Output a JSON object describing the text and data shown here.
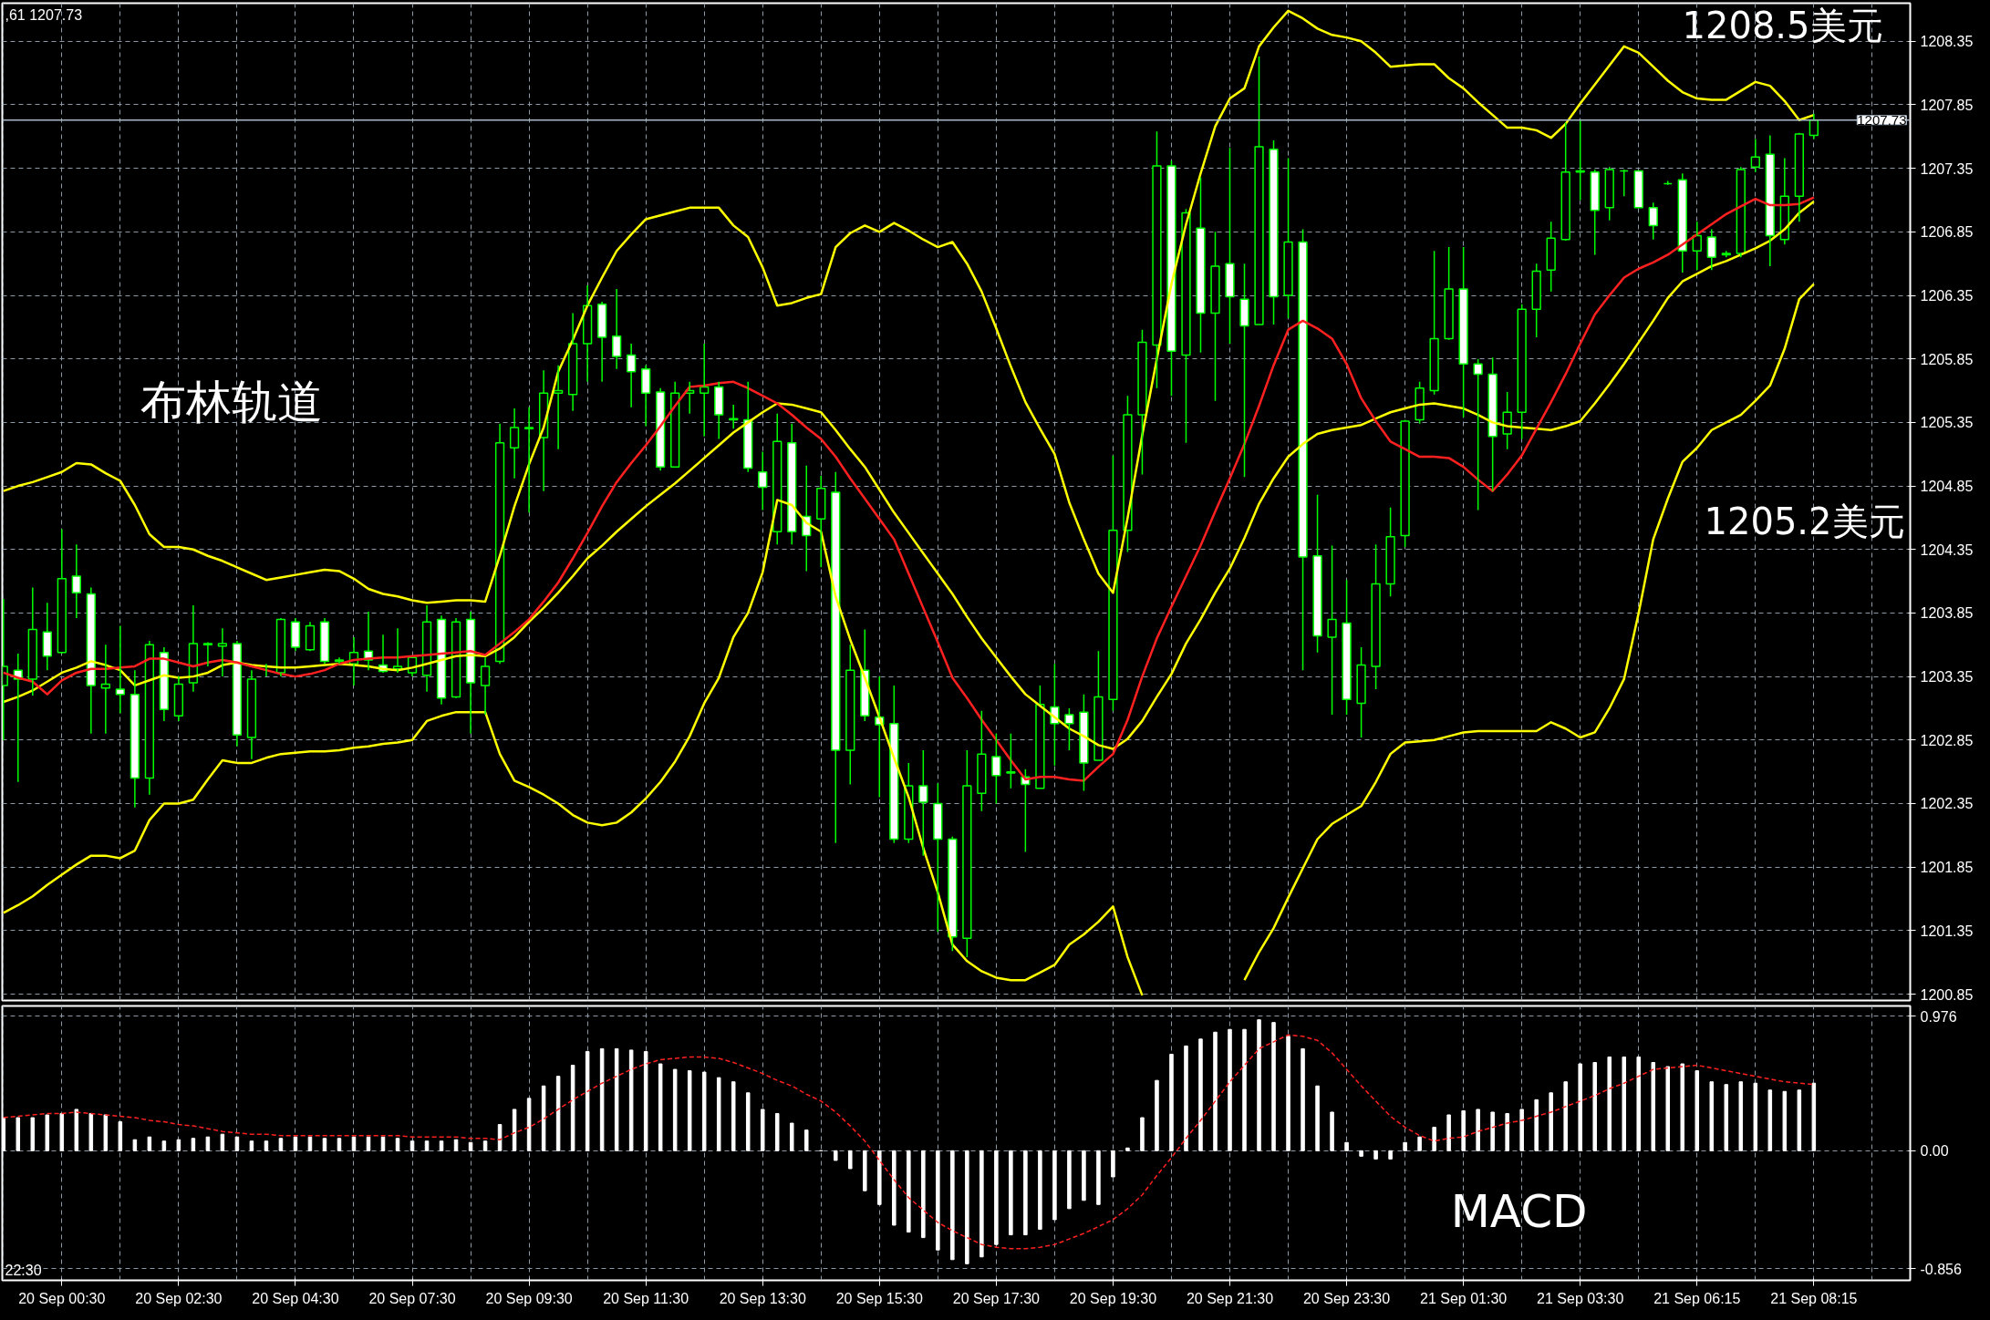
{
  "chart_data": [
    {
      "type": "candlestick",
      "ylim": [
        1200.8,
        1208.65
      ],
      "categories": [
        null,
        null,
        null,
        null,
        null,
        null,
        null,
        null,
        null,
        null,
        null,
        null,
        null,
        null,
        null,
        null,
        null,
        null,
        null,
        null,
        null,
        null,
        null,
        null,
        null,
        null,
        null,
        null,
        null,
        null,
        null,
        null,
        null,
        null,
        null,
        null,
        null,
        null,
        null,
        null,
        null,
        null,
        null,
        null,
        null,
        null,
        null,
        null,
        null,
        null,
        null,
        null,
        null,
        null,
        null,
        null,
        null,
        null,
        null,
        null,
        null,
        null,
        null,
        null,
        null,
        null,
        null,
        null,
        null,
        null,
        null,
        null,
        null,
        null,
        null,
        null,
        null,
        null,
        null,
        null,
        null,
        null,
        null,
        null,
        null,
        null,
        null,
        null,
        null,
        null,
        null,
        null,
        null,
        null,
        null,
        null,
        null,
        null,
        null,
        null,
        null,
        null,
        null,
        null,
        null,
        null,
        null,
        null,
        null,
        null,
        null,
        null,
        null,
        null,
        null,
        null,
        null,
        null,
        null,
        null,
        null,
        null,
        null,
        null,
        null
      ],
      "yticks": [
        1200.85,
        1201.35,
        1201.85,
        1202.35,
        1202.85,
        1203.35,
        1203.85,
        1204.35,
        1204.85,
        1205.35,
        1205.85,
        1206.35,
        1206.85,
        1207.35,
        1207.85,
        1208.35
      ],
      "tick_labels": "y",
      "grid": true,
      "ref_lines": [
        {
          "axis": "y",
          "value": 1207.73,
          "label": "1207.73",
          "color": "#a8b8c8"
        }
      ],
      "annotations": [
        ",61 1207.73",
        "布林轨道",
        "1208.5美元",
        "1205.2美元"
      ],
      "series": [
        {
          "type": "candlestick",
          "color": "#00ff00",
          "ohlc": [
            [
              1203.28,
              1203.96,
              1202.85,
              1203.43
            ],
            [
              1203.4,
              1203.53,
              1202.52,
              1203.33
            ],
            [
              1203.33,
              1204.05,
              1203.2,
              1203.72
            ],
            [
              1203.7,
              1203.93,
              1203.4,
              1203.51
            ],
            [
              1203.54,
              1204.51,
              1203.53,
              1204.12
            ],
            [
              1204.14,
              1204.39,
              1203.81,
              1204.01
            ],
            [
              1204.0,
              1204.05,
              1202.9,
              1203.28
            ],
            [
              1203.26,
              1203.6,
              1202.9,
              1203.29
            ],
            [
              1203.25,
              1203.75,
              1203.06,
              1203.21
            ],
            [
              1203.21,
              1203.4,
              1202.32,
              1202.55
            ],
            [
              1202.55,
              1203.63,
              1202.42,
              1203.6
            ],
            [
              1203.54,
              1203.58,
              1203.0,
              1203.09
            ],
            [
              1203.04,
              1203.35,
              1203.0,
              1203.29
            ],
            [
              1203.3,
              1203.91,
              1203.23,
              1203.61
            ],
            [
              1203.61,
              1203.62,
              1203.43,
              1203.6
            ],
            [
              1203.59,
              1203.73,
              1203.35,
              1203.61
            ],
            [
              1203.61,
              1203.63,
              1202.8,
              1202.89
            ],
            [
              1202.87,
              1203.4,
              1202.7,
              1203.33
            ],
            [
              1203.43,
              1203.45,
              1203.35,
              1203.43
            ],
            [
              1203.38,
              1203.81,
              1203.35,
              1203.8
            ],
            [
              1203.78,
              1203.81,
              1203.55,
              1203.58
            ],
            [
              1203.56,
              1203.78,
              1203.55,
              1203.75
            ],
            [
              1203.78,
              1203.81,
              1203.45,
              1203.47
            ],
            [
              1203.47,
              1203.5,
              1203.45,
              1203.48
            ],
            [
              1203.45,
              1203.66,
              1203.28,
              1203.54
            ],
            [
              1203.55,
              1203.86,
              1203.4,
              1203.48
            ],
            [
              1203.44,
              1203.68,
              1203.38,
              1203.39
            ],
            [
              1203.41,
              1203.73,
              1203.38,
              1203.43
            ],
            [
              1203.38,
              1203.5,
              1203.35,
              1203.5
            ],
            [
              1203.36,
              1203.91,
              1203.23,
              1203.78
            ],
            [
              1203.8,
              1203.83,
              1203.13,
              1203.18
            ],
            [
              1203.19,
              1203.81,
              1203.18,
              1203.78
            ],
            [
              1203.8,
              1203.86,
              1202.9,
              1203.3
            ],
            [
              1203.28,
              1203.5,
              1203.05,
              1203.43
            ],
            [
              1203.47,
              1205.34,
              1203.45,
              1205.19
            ],
            [
              1205.15,
              1205.46,
              1204.91,
              1205.31
            ],
            [
              1205.3,
              1205.47,
              1204.64,
              1205.31
            ],
            [
              1205.23,
              1205.76,
              1204.81,
              1205.58
            ],
            [
              1205.58,
              1205.8,
              1205.14,
              1205.6
            ],
            [
              1205.57,
              1206.21,
              1205.44,
              1205.97
            ],
            [
              1205.97,
              1206.43,
              1205.67,
              1206.27
            ],
            [
              1206.28,
              1206.3,
              1205.67,
              1206.02
            ],
            [
              1206.03,
              1206.4,
              1205.77,
              1205.87
            ],
            [
              1205.88,
              1205.97,
              1205.47,
              1205.75
            ],
            [
              1205.77,
              1205.8,
              1205.32,
              1205.58
            ],
            [
              1205.59,
              1205.62,
              1204.97,
              1205.0
            ],
            [
              1205.0,
              1205.67,
              1205.0,
              1205.58
            ],
            [
              1205.58,
              1205.67,
              1205.42,
              1205.6
            ],
            [
              1205.58,
              1205.97,
              1205.24,
              1205.63
            ],
            [
              1205.63,
              1205.67,
              1205.22,
              1205.41
            ],
            [
              1205.38,
              1205.49,
              1205.3,
              1205.37
            ],
            [
              1205.37,
              1205.67,
              1204.96,
              1204.99
            ],
            [
              1204.96,
              1205.12,
              1204.66,
              1204.84
            ],
            [
              1204.49,
              1205.42,
              1204.39,
              1205.2
            ],
            [
              1205.19,
              1205.34,
              1204.39,
              1204.49
            ],
            [
              1204.61,
              1205.01,
              1204.18,
              1204.46
            ],
            [
              1204.59,
              1204.93,
              1204.21,
              1204.83
            ],
            [
              1204.8,
              1204.96,
              1202.04,
              1202.77
            ],
            [
              1202.77,
              1203.6,
              1202.5,
              1203.4
            ],
            [
              1203.4,
              1203.72,
              1203.0,
              1203.04
            ],
            [
              1203.03,
              1203.35,
              1202.4,
              1202.97
            ],
            [
              1202.98,
              1203.28,
              1202.04,
              1202.07
            ],
            [
              1202.07,
              1202.67,
              1202.04,
              1202.49
            ],
            [
              1202.49,
              1202.77,
              1201.94,
              1202.36
            ],
            [
              1202.35,
              1202.51,
              1201.34,
              1202.07
            ],
            [
              1202.07,
              1202.09,
              1201.19,
              1201.3
            ],
            [
              1201.29,
              1202.77,
              1201.14,
              1202.49
            ],
            [
              1202.43,
              1203.08,
              1202.29,
              1202.74
            ],
            [
              1202.72,
              1202.9,
              1202.35,
              1202.57
            ],
            [
              1202.6,
              1202.9,
              1202.47,
              1202.59
            ],
            [
              1202.56,
              1202.62,
              1201.97,
              1202.5
            ],
            [
              1202.47,
              1203.28,
              1202.47,
              1203.13
            ],
            [
              1203.11,
              1203.45,
              1202.65,
              1202.98
            ],
            [
              1203.05,
              1203.1,
              1202.77,
              1202.98
            ],
            [
              1203.07,
              1203.21,
              1202.45,
              1202.67
            ],
            [
              1202.69,
              1203.55,
              1202.69,
              1203.19
            ],
            [
              1203.17,
              1205.09,
              1203.08,
              1204.5
            ],
            [
              1204.5,
              1205.56,
              1204.33,
              1205.41
            ],
            [
              1205.41,
              1206.08,
              1204.94,
              1205.98
            ],
            [
              1205.96,
              1207.64,
              1205.62,
              1207.37
            ],
            [
              1207.37,
              1207.41,
              1205.56,
              1205.91
            ],
            [
              1205.88,
              1207.03,
              1205.19,
              1207.0
            ],
            [
              1206.88,
              1207.28,
              1205.9,
              1206.21
            ],
            [
              1206.21,
              1206.85,
              1205.52,
              1206.58
            ],
            [
              1206.6,
              1207.51,
              1205.97,
              1206.34
            ],
            [
              1206.32,
              1206.6,
              1204.92,
              1206.11
            ],
            [
              1206.12,
              1208.23,
              1206.12,
              1207.52
            ],
            [
              1207.5,
              1207.57,
              1206.12,
              1206.34
            ],
            [
              1206.35,
              1207.43,
              1206.17,
              1206.77
            ],
            [
              1206.77,
              1206.87,
              1203.4,
              1204.29
            ],
            [
              1204.3,
              1204.78,
              1203.54,
              1203.67
            ],
            [
              1203.66,
              1204.38,
              1203.05,
              1203.8
            ],
            [
              1203.77,
              1204.11,
              1203.05,
              1203.17
            ],
            [
              1203.14,
              1203.58,
              1202.87,
              1203.44
            ],
            [
              1203.43,
              1204.39,
              1203.25,
              1204.08
            ],
            [
              1204.08,
              1204.68,
              1203.98,
              1204.45
            ],
            [
              1204.46,
              1205.37,
              1204.37,
              1205.36
            ],
            [
              1205.37,
              1205.67,
              1205.34,
              1205.62
            ],
            [
              1205.6,
              1206.7,
              1205.57,
              1206.01
            ],
            [
              1206.01,
              1206.73,
              1206.0,
              1206.4
            ],
            [
              1206.4,
              1206.73,
              1205.39,
              1205.81
            ],
            [
              1205.81,
              1205.85,
              1204.66,
              1205.73
            ],
            [
              1205.73,
              1205.86,
              1204.81,
              1205.24
            ],
            [
              1205.26,
              1205.59,
              1205.14,
              1205.43
            ],
            [
              1205.43,
              1206.28,
              1205.22,
              1206.24
            ],
            [
              1206.24,
              1206.6,
              1206.02,
              1206.54
            ],
            [
              1206.55,
              1206.93,
              1206.38,
              1206.8
            ],
            [
              1206.79,
              1207.71,
              1206.78,
              1207.32
            ],
            [
              1207.32,
              1207.73,
              1207.1,
              1207.33
            ],
            [
              1207.32,
              1207.34,
              1206.67,
              1207.02
            ],
            [
              1207.04,
              1207.36,
              1206.94,
              1207.34
            ],
            [
              1207.33,
              1207.34,
              1207.13,
              1207.33
            ],
            [
              1207.33,
              1207.33,
              1207.04,
              1207.04
            ],
            [
              1207.04,
              1207.08,
              1206.79,
              1206.9
            ],
            [
              1207.23,
              1207.25,
              1207.22,
              1207.23
            ],
            [
              1207.26,
              1207.31,
              1206.53,
              1206.7
            ],
            [
              1206.7,
              1206.93,
              1206.55,
              1206.82
            ],
            [
              1206.81,
              1206.87,
              1206.55,
              1206.65
            ],
            [
              1206.67,
              1206.7,
              1206.65,
              1206.68
            ],
            [
              1206.68,
              1207.36,
              1206.65,
              1207.34
            ],
            [
              1207.36,
              1207.58,
              1207.32,
              1207.44
            ],
            [
              1207.46,
              1207.61,
              1206.58,
              1206.82
            ],
            [
              1206.79,
              1207.43,
              1206.75,
              1207.13
            ],
            [
              1207.13,
              1207.63,
              1206.93,
              1207.62
            ],
            [
              1207.61,
              1207.78,
              1207.58,
              1207.73
            ]
          ]
        },
        {
          "type": "line",
          "color": "#ffff00",
          "values": [
            1204.81,
            1204.85,
            1204.88,
            1204.92,
            1204.96,
            1205.03,
            1205.02,
            1204.95,
            1204.89,
            1204.7,
            1204.47,
            1204.37,
            1204.37,
            1204.35,
            1204.3,
            1204.26,
            1204.21,
            1204.16,
            1204.11,
            1204.13,
            1204.15,
            1204.17,
            1204.19,
            1204.18,
            1204.12,
            1204.04,
            1204.0,
            1203.98,
            1203.95,
            1203.93,
            1203.94,
            1203.95,
            1203.95,
            1203.94,
            1204.3,
            1204.69,
            1205.02,
            1205.31,
            1205.75,
            1206.0,
            1206.27,
            1206.49,
            1206.7,
            1206.83,
            1206.95,
            1206.98,
            1207.01,
            1207.04,
            1207.04,
            1207.04,
            1206.9,
            1206.81,
            1206.57,
            1206.27,
            1206.29,
            1206.33,
            1206.36,
            1206.73,
            1206.84,
            1206.9,
            1206.85,
            1206.92,
            1206.86,
            1206.79,
            1206.73,
            1206.77,
            1206.6,
            1206.38,
            1206.09,
            1205.79,
            1205.51,
            1205.3,
            1205.1,
            1204.72,
            1204.43,
            1204.16,
            1204.01,
            1204.6,
            1205.25,
            1205.85,
            1206.44,
            1206.91,
            1207.31,
            1207.68,
            1207.9,
            1207.98,
            1208.31,
            1208.46,
            1208.59,
            1208.53,
            1208.45,
            1208.4,
            1208.38,
            1208.35,
            1208.26,
            1208.15,
            1208.16,
            1208.17,
            1208.17,
            1208.06,
            1207.98,
            1207.87,
            1207.77,
            1207.67,
            1207.67,
            1207.65,
            1207.59,
            1207.7,
            1207.86,
            1208.01,
            1208.16,
            1208.31,
            1208.26,
            1208.15,
            1208.04,
            1207.95,
            1207.9,
            1207.89,
            1207.89,
            1207.96,
            1208.03,
            1208.0,
            1207.88,
            1207.73,
            1207.77
          ]
        },
        {
          "type": "line",
          "color": "#ffff00",
          "values": [
            1203.15,
            1203.19,
            1203.24,
            1203.31,
            1203.38,
            1203.42,
            1203.47,
            1203.44,
            1203.4,
            1203.28,
            1203.32,
            1203.36,
            1203.34,
            1203.35,
            1203.38,
            1203.44,
            1203.46,
            1203.44,
            1203.43,
            1203.42,
            1203.42,
            1203.43,
            1203.44,
            1203.45,
            1203.44,
            1203.43,
            1203.41,
            1203.4,
            1203.42,
            1203.45,
            1203.48,
            1203.51,
            1203.52,
            1203.51,
            1203.57,
            1203.66,
            1203.78,
            1203.89,
            1204.01,
            1204.14,
            1204.28,
            1204.38,
            1204.49,
            1204.59,
            1204.69,
            1204.78,
            1204.87,
            1204.97,
            1205.07,
            1205.17,
            1205.27,
            1205.35,
            1205.43,
            1205.5,
            1205.49,
            1205.46,
            1205.43,
            1205.29,
            1205.14,
            1205.0,
            1204.82,
            1204.64,
            1204.48,
            1204.32,
            1204.16,
            1204.0,
            1203.82,
            1203.65,
            1203.5,
            1203.35,
            1203.21,
            1203.12,
            1203.03,
            1202.94,
            1202.88,
            1202.81,
            1202.78,
            1202.86,
            1203.0,
            1203.19,
            1203.37,
            1203.61,
            1203.8,
            1204.01,
            1204.2,
            1204.44,
            1204.71,
            1204.91,
            1205.08,
            1205.18,
            1205.26,
            1205.29,
            1205.31,
            1205.33,
            1205.38,
            1205.43,
            1205.46,
            1205.49,
            1205.5,
            1205.48,
            1205.46,
            1205.41,
            1205.35,
            1205.32,
            1205.31,
            1205.3,
            1205.29,
            1205.32,
            1205.36,
            1205.5,
            1205.65,
            1205.81,
            1205.98,
            1206.15,
            1206.33,
            1206.46,
            1206.52,
            1206.58,
            1206.62,
            1206.67,
            1206.72,
            1206.78,
            1206.87,
            1207.0,
            1207.09
          ]
        },
        {
          "type": "line",
          "color": "#ffff00",
          "values": [
            1201.49,
            1201.55,
            1201.62,
            1201.71,
            1201.79,
            1201.87,
            1201.94,
            1201.94,
            1201.92,
            1201.98,
            1202.22,
            1202.35,
            1202.35,
            1202.38,
            1202.54,
            1202.69,
            1202.67,
            1202.67,
            1202.71,
            1202.74,
            1202.75,
            1202.76,
            1202.76,
            1202.77,
            1202.79,
            1202.8,
            1202.82,
            1202.83,
            1202.85,
            1203.0,
            1203.04,
            1203.07,
            1203.07,
            1203.07,
            1202.74,
            1202.53,
            1202.48,
            1202.42,
            1202.35,
            1202.26,
            1202.2,
            1202.18,
            1202.2,
            1202.28,
            1202.39,
            1202.52,
            1202.68,
            1202.88,
            1203.14,
            1203.34,
            1203.66,
            1203.85,
            1204.17,
            1204.74,
            1204.7,
            1204.56,
            1204.49,
            1203.98,
            1203.64,
            1203.34,
            1203.03,
            1202.71,
            1202.4,
            1202.0,
            1201.65,
            1201.24,
            1201.11,
            1201.03,
            1200.98,
            1200.96,
            1200.96,
            1201.02,
            1201.08,
            1201.24,
            1201.32,
            1201.42,
            1201.54,
            1201.14,
            1200.84,
            null,
            null,
            null,
            null,
            null,
            null,
            1200.96,
            1201.18,
            1201.37,
            1201.61,
            1201.84,
            1202.07,
            1202.19,
            1202.26,
            1202.33,
            1202.52,
            1202.74,
            1202.83,
            1202.84,
            1202.85,
            1202.88,
            1202.91,
            1202.92,
            1202.92,
            1202.92,
            1202.92,
            1202.92,
            1202.99,
            1202.94,
            1202.87,
            1202.91,
            1203.1,
            1203.33,
            1203.85,
            1204.43,
            1204.75,
            1205.04,
            1205.15,
            1205.29,
            1205.35,
            1205.41,
            1205.52,
            1205.64,
            1205.93,
            1206.32,
            1206.44
          ]
        },
        {
          "type": "line",
          "color": "#ff2020",
          "values": [
            1203.38,
            1203.34,
            1203.31,
            1203.21,
            1203.32,
            1203.38,
            1203.41,
            1203.41,
            1203.42,
            1203.43,
            1203.49,
            1203.49,
            1203.46,
            1203.43,
            1203.46,
            1203.48,
            1203.46,
            1203.43,
            1203.4,
            1203.37,
            1203.35,
            1203.37,
            1203.4,
            1203.45,
            1203.48,
            1203.49,
            1203.5,
            1203.5,
            1203.51,
            1203.52,
            1203.53,
            1203.54,
            1203.55,
            1203.52,
            1203.61,
            1203.7,
            1203.8,
            1203.94,
            1204.09,
            1204.28,
            1204.48,
            1204.69,
            1204.88,
            1205.03,
            1205.17,
            1205.32,
            1205.48,
            1205.63,
            1205.64,
            1205.66,
            1205.67,
            1205.62,
            1205.56,
            1205.5,
            1205.41,
            1205.31,
            1205.22,
            1205.08,
            1204.91,
            1204.75,
            1204.59,
            1204.43,
            1204.16,
            1203.89,
            1203.62,
            1203.34,
            1203.18,
            1203.01,
            1202.85,
            1202.69,
            1202.54,
            1202.56,
            1202.56,
            1202.54,
            1202.53,
            1202.64,
            1202.74,
            1203.01,
            1203.35,
            1203.65,
            1203.9,
            1204.14,
            1204.38,
            1204.65,
            1204.91,
            1205.18,
            1205.48,
            1205.8,
            1206.08,
            1206.15,
            1206.09,
            1206.01,
            1205.81,
            1205.54,
            1205.36,
            1205.2,
            1205.14,
            1205.08,
            1205.08,
            1205.07,
            1205.0,
            1204.9,
            1204.81,
            1204.94,
            1205.09,
            1205.3,
            1205.51,
            1205.73,
            1205.97,
            1206.2,
            1206.35,
            1206.49,
            1206.56,
            1206.61,
            1206.67,
            1206.75,
            1206.83,
            1206.91,
            1206.99,
            1207.05,
            1207.11,
            1207.06,
            1207.06,
            1207.07,
            1207.12
          ]
        }
      ]
    },
    {
      "type": "bar",
      "ylim": [
        -0.94,
        1.05
      ],
      "categories": [
        null,
        null,
        null,
        null,
        "20 Sep 00:30",
        null,
        null,
        null,
        null,
        null,
        null,
        null,
        "20 Sep 02:30",
        null,
        null,
        null,
        null,
        null,
        null,
        null,
        "20 Sep 04:30",
        null,
        null,
        null,
        null,
        null,
        null,
        null,
        "20 Sep 07:30",
        null,
        null,
        null,
        null,
        null,
        null,
        null,
        "20 Sep 09:30",
        null,
        null,
        null,
        null,
        null,
        null,
        null,
        "20 Sep 11:30",
        null,
        null,
        null,
        null,
        null,
        null,
        null,
        "20 Sep 13:30",
        null,
        null,
        null,
        null,
        null,
        null,
        null,
        "20 Sep 15:30",
        null,
        null,
        null,
        null,
        null,
        null,
        null,
        "20 Sep 17:30",
        null,
        null,
        null,
        null,
        null,
        null,
        null,
        "20 Sep 19:30",
        null,
        null,
        null,
        null,
        null,
        null,
        null,
        "20 Sep 21:30",
        null,
        null,
        null,
        null,
        null,
        null,
        null,
        "20 Sep 23:30",
        null,
        null,
        null,
        null,
        null,
        null,
        null,
        "21 Sep 01:30",
        null,
        null,
        null,
        null,
        null,
        null,
        null,
        "21 Sep 03:30",
        null,
        null,
        null,
        null,
        null,
        null,
        null,
        "21 Sep 06:15",
        null,
        null,
        null,
        null,
        null,
        null,
        null,
        "21 Sep 08:15"
      ],
      "yticks": [
        0.976,
        {
          "value": 0,
          "label": "0.00"
        },
        -0.856
      ],
      "grid": true,
      "annotations": [
        "22:30",
        "MACD"
      ],
      "series": [
        {
          "color": "#ffffff",
          "values": [
            0.24,
            0.24,
            0.24,
            0.26,
            0.27,
            0.3,
            0.27,
            0.26,
            0.21,
            0.08,
            0.1,
            0.07,
            0.08,
            0.09,
            0.1,
            0.12,
            0.1,
            0.07,
            0.07,
            0.09,
            0.1,
            0.1,
            0.09,
            0.09,
            0.1,
            0.1,
            0.1,
            0.09,
            0.07,
            0.07,
            0.07,
            0.08,
            0.06,
            0.07,
            0.19,
            0.3,
            0.38,
            0.47,
            0.54,
            0.62,
            0.72,
            0.74,
            0.74,
            0.73,
            0.72,
            0.63,
            0.59,
            0.58,
            0.57,
            0.53,
            0.5,
            0.42,
            0.3,
            0.27,
            0.2,
            0.15,
            0.0,
            -0.07,
            -0.13,
            -0.29,
            -0.39,
            -0.54,
            -0.59,
            -0.63,
            -0.72,
            -0.79,
            -0.82,
            -0.77,
            -0.68,
            -0.61,
            -0.61,
            -0.57,
            -0.5,
            -0.42,
            -0.36,
            -0.39,
            -0.19,
            0.02,
            0.24,
            0.51,
            0.7,
            0.76,
            0.81,
            0.86,
            0.88,
            0.88,
            0.95,
            0.93,
            0.83,
            0.74,
            0.47,
            0.28,
            0.06,
            -0.04,
            -0.06,
            -0.06,
            0.06,
            0.1,
            0.17,
            0.26,
            0.29,
            0.3,
            0.28,
            0.27,
            0.3,
            0.37,
            0.42,
            0.5,
            0.63,
            0.64,
            0.68,
            0.68,
            0.68,
            0.64,
            0.61,
            0.63,
            0.58,
            0.5,
            0.48,
            0.5,
            0.49,
            0.44,
            0.43,
            0.44,
            0.49
          ]
        },
        {
          "type": "line",
          "color": "#ff2020",
          "line_style": "dashed",
          "values": [
            0.24,
            0.25,
            0.26,
            0.27,
            0.27,
            0.28,
            0.27,
            0.26,
            0.25,
            0.24,
            0.22,
            0.21,
            0.19,
            0.18,
            0.16,
            0.14,
            0.13,
            0.12,
            0.12,
            0.11,
            0.11,
            0.11,
            0.11,
            0.11,
            0.11,
            0.11,
            0.11,
            0.11,
            0.1,
            0.1,
            0.1,
            0.1,
            0.09,
            0.09,
            0.08,
            0.13,
            0.17,
            0.23,
            0.3,
            0.37,
            0.43,
            0.49,
            0.54,
            0.59,
            0.63,
            0.66,
            0.67,
            0.68,
            0.68,
            0.67,
            0.64,
            0.6,
            0.56,
            0.51,
            0.47,
            0.41,
            0.36,
            0.28,
            0.18,
            0.07,
            -0.07,
            -0.21,
            -0.34,
            -0.43,
            -0.52,
            -0.58,
            -0.63,
            -0.68,
            -0.7,
            -0.71,
            -0.71,
            -0.7,
            -0.68,
            -0.64,
            -0.6,
            -0.55,
            -0.5,
            -0.42,
            -0.32,
            -0.18,
            -0.05,
            0.09,
            0.22,
            0.36,
            0.5,
            0.62,
            0.74,
            0.79,
            0.84,
            0.83,
            0.8,
            0.71,
            0.59,
            0.47,
            0.36,
            0.25,
            0.17,
            0.11,
            0.07,
            0.09,
            0.1,
            0.14,
            0.17,
            0.2,
            0.22,
            0.25,
            0.28,
            0.32,
            0.36,
            0.4,
            0.45,
            0.49,
            0.54,
            0.59,
            0.6,
            0.61,
            0.62,
            0.6,
            0.58,
            0.56,
            0.54,
            0.52,
            0.5,
            0.49,
            0.48
          ]
        }
      ]
    }
  ]
}
